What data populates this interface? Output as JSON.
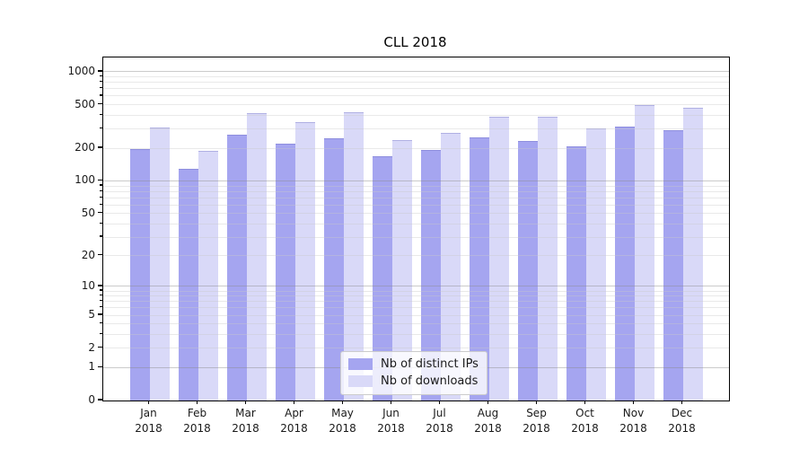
{
  "figure": {
    "background": "#ffffff"
  },
  "chart_data": {
    "type": "bar",
    "title": "CLL 2018",
    "categories": [
      "Jan",
      "Feb",
      "Mar",
      "Apr",
      "May",
      "Jun",
      "Jul",
      "Aug",
      "Sep",
      "Oct",
      "Nov",
      "Dec"
    ],
    "year_label": "2018",
    "series": [
      {
        "name": "Nb of distinct IPs",
        "color": "#a5a5f0",
        "values": [
          195,
          130,
          265,
          220,
          245,
          170,
          192,
          250,
          232,
          207,
          315,
          292
        ]
      },
      {
        "name": "Nb of downloads",
        "color": "#d9d9f8",
        "values": [
          307,
          188,
          415,
          345,
          430,
          237,
          276,
          388,
          385,
          303,
          495,
          467
        ]
      }
    ],
    "xlabel": "",
    "ylabel": "",
    "yscale": "symlog",
    "yticks": [
      0,
      1,
      2,
      5,
      10,
      20,
      50,
      100,
      200,
      500,
      1000
    ],
    "ylim": [
      0,
      1352
    ],
    "grid": true,
    "legend": {
      "position": "lower center",
      "entries": [
        "Nb of distinct IPs",
        "Nb of downloads"
      ]
    }
  },
  "colors": {
    "spine": "#000000",
    "major_grid": "#c8c8c8",
    "minor_grid": "#e9e9e9",
    "text": "#1a1a1a"
  }
}
